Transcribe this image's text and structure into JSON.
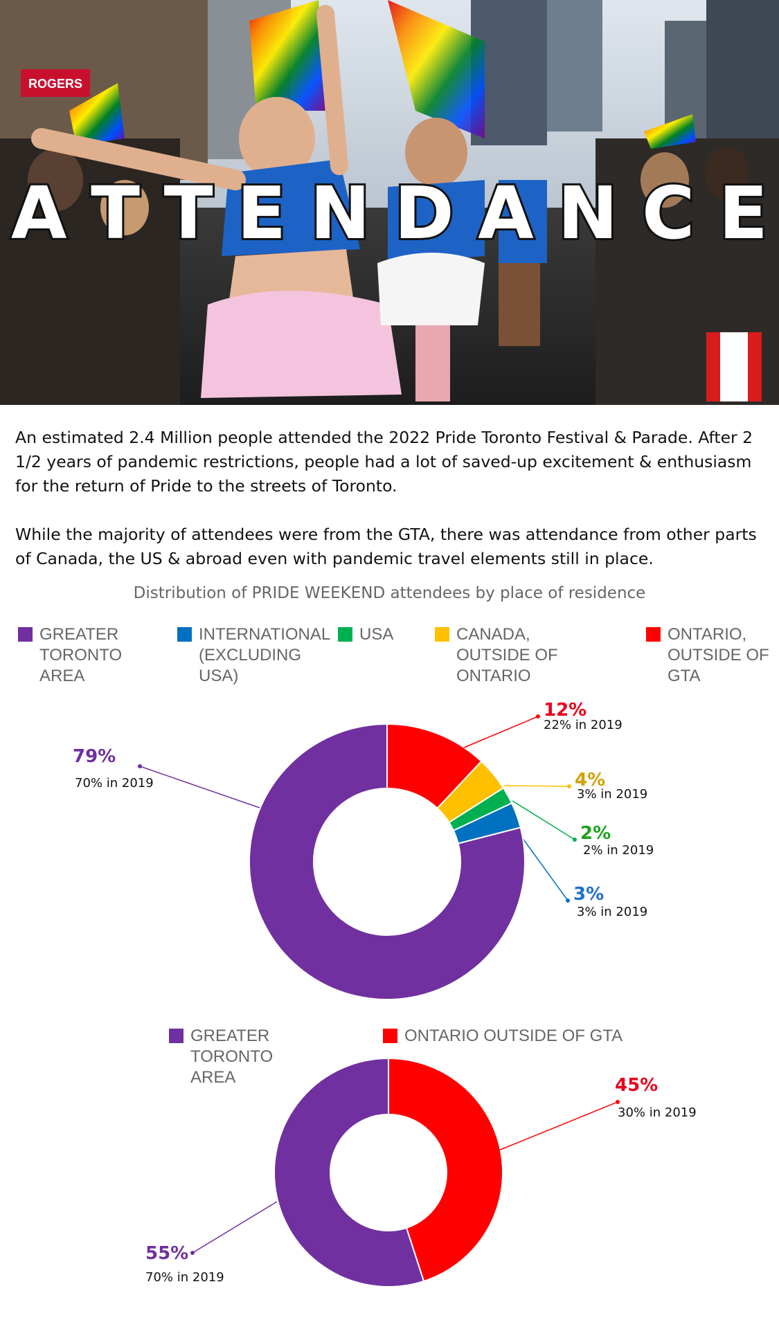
{
  "hero": {
    "title_letters": [
      "A",
      "T",
      "T",
      "E",
      "N",
      "D",
      "A",
      "N",
      "C",
      "E"
    ],
    "store_sign": "ROGERS"
  },
  "intro": {
    "p1": "An estimated 2.4 Million people attended the 2022 Pride Toronto Festival & Parade. After 2 1/2 years of pandemic restrictions, people had a lot of saved-up excitement & enthusiasm for the return of Pride to the streets of Toronto.",
    "p2": "While the majority of attendees were from the GTA, there was attendance from other parts of Canada, the US & abroad even with pandemic travel elements still in place."
  },
  "colors": {
    "purple": "#7030a0",
    "red": "#ff0000",
    "yellow": "#ffc000",
    "green": "#00b050",
    "blue": "#0070c0",
    "purple_text": "#7030a0",
    "red_text": "#e8001c",
    "yellow_text": "#d4a000",
    "green_text": "#1ca31c",
    "blue_text": "#1f6fd1"
  },
  "chart_data": [
    {
      "type": "donut",
      "title": "Distribution of PRIDE WEEKEND attendees by place of residence",
      "legend": [
        "GREATER TORONTO AREA",
        "INTERNATIONAL (EXCLUDING USA)",
        "USA",
        "CANADA, OUTSIDE OF ONTARIO",
        "ONTARIO, OUTSIDE OF GTA"
      ],
      "slices": [
        {
          "name": "ONTARIO, OUTSIDE OF GTA",
          "value": 12,
          "label": "12%",
          "sub": "22% in 2019",
          "color": "#ff0000"
        },
        {
          "name": "CANADA, OUTSIDE OF ONTARIO",
          "value": 4,
          "label": "4%",
          "sub": "3% in 2019",
          "color": "#ffc000"
        },
        {
          "name": "USA",
          "value": 2,
          "label": "2%",
          "sub": "2% in 2019",
          "color": "#00b050"
        },
        {
          "name": "INTERNATIONAL (EXCLUDING USA)",
          "value": 3,
          "label": "3%",
          "sub": "3% in 2019",
          "color": "#0070c0"
        },
        {
          "name": "GREATER TORONTO AREA",
          "value": 79,
          "label": "79%",
          "sub": "70% in 2019",
          "color": "#7030a0"
        }
      ]
    },
    {
      "type": "donut",
      "title": "",
      "legend": [
        "GREATER TORONTO AREA",
        "ONTARIO OUTSIDE OF GTA"
      ],
      "slices": [
        {
          "name": "ONTARIO OUTSIDE OF GTA",
          "value": 45,
          "label": "45%",
          "sub": "30% in 2019",
          "color": "#ff0000"
        },
        {
          "name": "GREATER TORONTO AREA",
          "value": 55,
          "label": "55%",
          "sub": "70% in 2019",
          "color": "#7030a0"
        }
      ]
    }
  ]
}
